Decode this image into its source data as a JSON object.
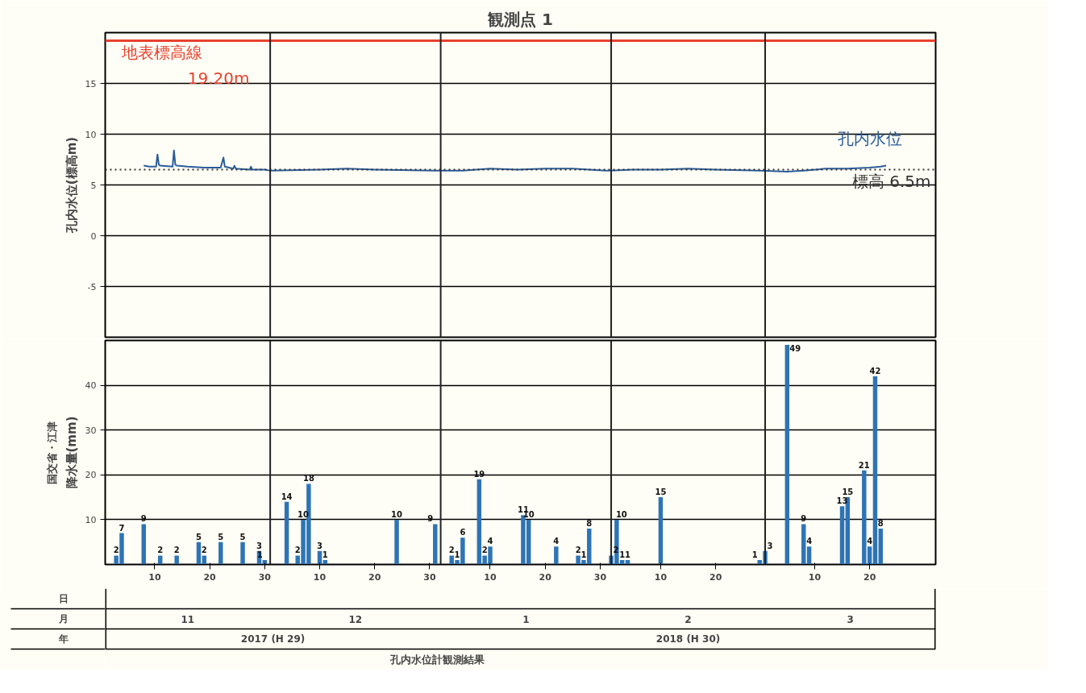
{
  "chart_data": [
    {
      "type": "line",
      "title": "観測点 1",
      "ylabel": "孔内水位(標高m)",
      "xlim": [
        "2017-11-01",
        "2018-04-01"
      ],
      "ylim": [
        -10,
        20
      ],
      "yticks": [
        -5,
        0,
        5,
        10,
        15
      ],
      "grid": "y",
      "tick_labels": "y",
      "line_style": "solid",
      "series": [
        {
          "name": "孔内水位",
          "color": "#2b5c9a",
          "x": [
            "2017-11-08",
            "2017-11-09",
            "2017-11-10T06:00",
            "2017-11-10T12:00",
            "2017-11-10T18:00",
            "2017-11-11",
            "2017-11-13T06:00",
            "2017-11-13T12:00",
            "2017-11-13T18:00",
            "2017-11-14",
            "2017-11-16",
            "2017-11-19",
            "2017-11-22T00:00",
            "2017-11-22T12:00",
            "2017-11-22T18:00",
            "2017-11-24T06:00",
            "2017-11-24T12:00",
            "2017-11-24T18:00",
            "2017-11-27T06:00",
            "2017-11-27T12:00",
            "2017-11-27T18:00",
            "2017-11-30",
            "2017-12-01",
            "2017-12-10",
            "2017-12-15",
            "2017-12-20",
            "2017-12-31",
            "2018-01-05",
            "2018-01-10",
            "2018-01-15",
            "2018-01-20",
            "2018-01-25",
            "2018-01-31",
            "2018-02-05",
            "2018-02-10",
            "2018-02-15",
            "2018-02-20",
            "2018-02-28",
            "2018-03-05",
            "2018-03-08",
            "2018-03-12",
            "2018-03-16",
            "2018-03-20",
            "2018-03-22",
            "2018-03-23"
          ],
          "values": [
            6.9,
            6.8,
            6.8,
            8.0,
            7.0,
            6.9,
            6.8,
            8.4,
            7.0,
            6.9,
            6.8,
            6.7,
            6.7,
            7.7,
            6.8,
            6.6,
            6.9,
            6.6,
            6.5,
            6.8,
            6.5,
            6.5,
            6.4,
            6.5,
            6.6,
            6.5,
            6.4,
            6.4,
            6.6,
            6.5,
            6.6,
            6.6,
            6.4,
            6.5,
            6.5,
            6.6,
            6.5,
            6.4,
            6.3,
            6.4,
            6.6,
            6.6,
            6.7,
            6.8,
            6.9
          ]
        }
      ],
      "ref_lines": [
        {
          "axis": "y",
          "value": 19.2,
          "label": "地表標高線",
          "color": "#e8412e"
        },
        {
          "axis": "y",
          "value": 6.5,
          "label": "標高 6.5m",
          "color": "#333333",
          "line_style": "dotted"
        },
        {
          "axis": "x",
          "value": "2017-12-01",
          "color": "#222222"
        },
        {
          "axis": "x",
          "value": "2018-01-01",
          "color": "#222222"
        },
        {
          "axis": "x",
          "value": "2018-02-01",
          "color": "#222222"
        },
        {
          "axis": "x",
          "value": "2018-03-01",
          "color": "#222222"
        }
      ],
      "annotations": [
        {
          "text": "19.20m",
          "x": "2017-11-16",
          "y": 19.2
        }
      ]
    },
    {
      "type": "bar",
      "ylabel": "降水量(mm)",
      "color": "#2e74b5",
      "data_labels": true,
      "xlim": [
        "2017-11-01",
        "2018-04-01"
      ],
      "ylim": [
        0,
        50
      ],
      "yticks": [
        10,
        20,
        30,
        40
      ],
      "grid": "y",
      "xticks": [
        {
          "value": "2017-11-10",
          "label": "10"
        },
        {
          "value": "2017-11-20",
          "label": "20"
        },
        {
          "value": "2017-11-30",
          "label": "30"
        },
        {
          "value": "2017-12-10",
          "label": "10"
        },
        {
          "value": "2017-12-20",
          "label": "20"
        },
        {
          "value": "2017-12-30",
          "label": "30"
        },
        {
          "value": "2018-01-10",
          "label": "10"
        },
        {
          "value": "2018-01-20",
          "label": "20"
        },
        {
          "value": "2018-01-30",
          "label": "30"
        },
        {
          "value": "2018-02-10",
          "label": "10"
        },
        {
          "value": "2018-02-20",
          "label": "20"
        },
        {
          "value": "2018-03-10",
          "label": "10"
        },
        {
          "value": "2018-03-20",
          "label": "20"
        }
      ],
      "x": [
        "2017-11-03",
        "2017-11-04",
        "2017-11-08",
        "2017-11-11",
        "2017-11-14",
        "2017-11-18",
        "2017-11-19",
        "2017-11-22",
        "2017-11-26",
        "2017-11-29",
        "2017-11-30",
        "2017-12-04",
        "2017-12-06",
        "2017-12-07",
        "2017-12-08",
        "2017-12-10",
        "2017-12-11",
        "2017-12-24",
        "2017-12-31",
        "2018-01-03",
        "2018-01-04",
        "2018-01-05",
        "2018-01-08",
        "2018-01-09",
        "2018-01-10",
        "2018-01-16",
        "2018-01-17",
        "2018-01-22",
        "2018-01-26",
        "2018-01-27",
        "2018-01-28",
        "2018-02-01",
        "2018-02-02",
        "2018-02-03",
        "2018-02-04",
        "2018-02-10",
        "2018-02-28",
        "2018-03-01",
        "2018-03-05",
        "2018-03-08",
        "2018-03-09",
        "2018-03-15",
        "2018-03-16",
        "2018-03-19",
        "2018-03-20",
        "2018-03-21",
        "2018-03-22"
      ],
      "values": [
        2,
        7,
        9,
        2,
        2,
        5,
        2,
        5,
        5,
        3,
        1,
        14,
        2,
        10,
        18,
        3,
        1,
        10,
        9,
        2,
        1,
        6,
        19,
        2,
        4,
        11,
        10,
        4,
        2,
        1,
        8,
        2,
        10,
        1,
        1,
        15,
        1,
        3,
        49,
        9,
        4,
        13,
        15,
        21,
        4,
        42,
        8
      ],
      "ref_lines": [
        {
          "axis": "x",
          "value": "2017-12-01",
          "color": "#222222"
        },
        {
          "axis": "x",
          "value": "2018-01-01",
          "color": "#222222"
        },
        {
          "axis": "x",
          "value": "2018-02-01",
          "color": "#222222"
        },
        {
          "axis": "x",
          "value": "2018-03-01",
          "color": "#222222"
        }
      ],
      "annotations": [
        "11",
        "12",
        "1",
        "2",
        "3",
        "2017 (H 29)",
        "2018 (H 30)",
        "日",
        "月",
        "年",
        "国交省・江津",
        "孔内水位計観測結果"
      ]
    }
  ]
}
